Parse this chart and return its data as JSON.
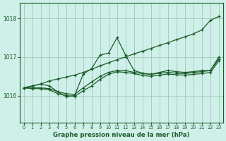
{
  "title": "Graphe pression niveau de la mer (hPa)",
  "bg_color": "#cff0e8",
  "grid_color": "#a0c8bc",
  "line_color": "#1a5c2a",
  "ylim": [
    1015.3,
    1018.4
  ],
  "yticks": [
    1016,
    1017,
    1018
  ],
  "xlim": [
    -0.5,
    23.5
  ],
  "xticks": [
    0,
    1,
    2,
    3,
    4,
    5,
    6,
    7,
    8,
    9,
    10,
    11,
    12,
    13,
    14,
    15,
    16,
    17,
    18,
    19,
    20,
    21,
    22,
    23
  ],
  "line1_x": [
    0,
    1,
    2,
    3,
    4,
    5,
    6,
    7,
    8,
    9,
    10,
    11,
    12,
    13,
    14,
    15,
    16,
    17,
    18,
    19,
    20,
    21,
    22,
    23
  ],
  "line1_y": [
    1016.2,
    1016.25,
    1016.3,
    1016.38,
    1016.43,
    1016.48,
    1016.53,
    1016.6,
    1016.68,
    1016.77,
    1016.85,
    1016.93,
    1017.0,
    1017.08,
    1017.15,
    1017.22,
    1017.3,
    1017.37,
    1017.45,
    1017.52,
    1017.6,
    1017.7,
    1017.95,
    1018.05
  ],
  "line2_x": [
    0,
    1,
    2,
    3,
    4,
    5,
    6,
    7,
    8,
    9,
    10,
    11,
    12,
    13,
    14,
    15,
    16,
    17,
    18,
    19,
    20,
    21,
    22,
    23
  ],
  "line2_y": [
    1016.2,
    1016.25,
    1016.3,
    1016.25,
    1016.1,
    1015.97,
    1016.0,
    1016.55,
    1016.7,
    1017.05,
    1017.1,
    1017.5,
    1017.05,
    1016.65,
    1016.58,
    1016.55,
    1016.6,
    1016.65,
    1016.62,
    1016.6,
    1016.62,
    1016.65,
    1016.65,
    1017.0
  ],
  "line3_x": [
    0,
    1,
    2,
    3,
    4,
    5,
    6,
    7,
    8,
    9,
    10,
    11,
    12,
    13,
    14,
    15,
    16,
    17,
    18,
    19,
    20,
    21,
    22,
    23
  ],
  "line3_y": [
    1016.2,
    1016.2,
    1016.2,
    1016.18,
    1016.1,
    1016.05,
    1016.03,
    1016.2,
    1016.35,
    1016.5,
    1016.6,
    1016.65,
    1016.65,
    1016.6,
    1016.57,
    1016.55,
    1016.58,
    1016.6,
    1016.58,
    1016.57,
    1016.6,
    1016.62,
    1016.65,
    1016.95
  ],
  "line4_x": [
    0,
    1,
    2,
    3,
    4,
    5,
    6,
    7,
    8,
    9,
    10,
    11,
    12,
    13,
    14,
    15,
    16,
    17,
    18,
    19,
    20,
    21,
    22,
    23
  ],
  "line4_y": [
    1016.2,
    1016.18,
    1016.18,
    1016.15,
    1016.05,
    1016.0,
    1015.98,
    1016.12,
    1016.25,
    1016.42,
    1016.55,
    1016.62,
    1016.6,
    1016.57,
    1016.52,
    1016.5,
    1016.53,
    1016.56,
    1016.54,
    1016.53,
    1016.55,
    1016.57,
    1016.6,
    1016.9
  ]
}
